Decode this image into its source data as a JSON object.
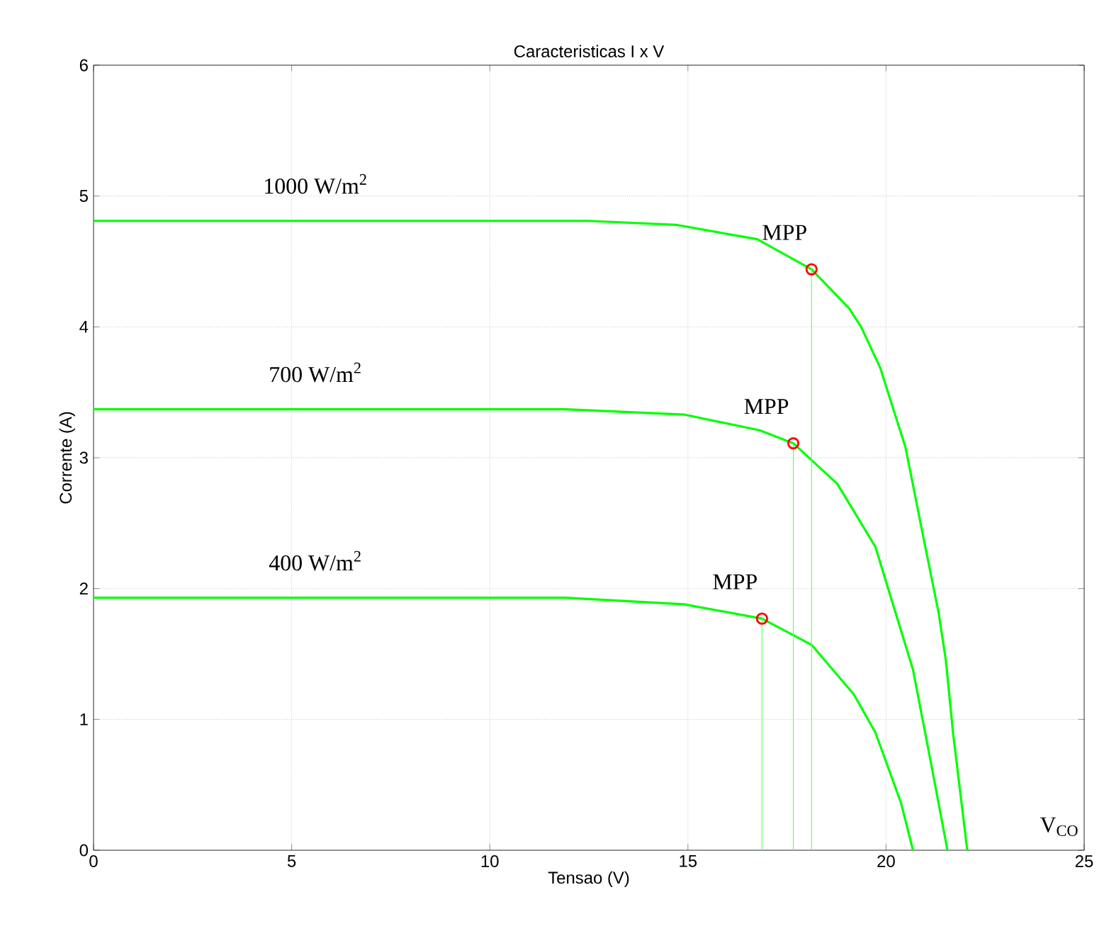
{
  "chart_data": {
    "type": "line",
    "title": "Caracteristicas I x V",
    "xlabel": "Tensao (V)",
    "ylabel": "Corrente (A)",
    "xlim": [
      0,
      25
    ],
    "ylim": [
      0,
      6
    ],
    "xticks": [
      0,
      5,
      10,
      15,
      20,
      25
    ],
    "yticks": [
      0,
      1,
      2,
      3,
      4,
      5,
      6
    ],
    "grid": true,
    "marker": "none",
    "series": [
      {
        "color": "#00ff00",
        "x": [
          0,
          5,
          10,
          12.5,
          14.7,
          16.75,
          18.12,
          19.07,
          19.37,
          19.85,
          20.49,
          20.97,
          21.33,
          21.51,
          21.69,
          22.05
        ],
        "values": [
          4.81,
          4.81,
          4.81,
          4.81,
          4.78,
          4.67,
          4.44,
          4.14,
          4.0,
          3.69,
          3.08,
          2.35,
          1.81,
          1.45,
          0.9,
          0
        ]
      },
      {
        "color": "#00ff00",
        "x": [
          0,
          5,
          10,
          11.9,
          14.9,
          16.81,
          17.66,
          18.77,
          19.73,
          20.68,
          21.1,
          21.55
        ],
        "values": [
          3.37,
          3.37,
          3.37,
          3.37,
          3.33,
          3.21,
          3.11,
          2.8,
          2.32,
          1.38,
          0.72,
          0
        ]
      },
      {
        "color": "#00ff00",
        "x": [
          0,
          5,
          10,
          11.9,
          14.9,
          16.87,
          18.12,
          19.19,
          19.73,
          20.38,
          20.68
        ],
        "values": [
          1.93,
          1.93,
          1.93,
          1.93,
          1.88,
          1.77,
          1.57,
          1.19,
          0.9,
          0.36,
          0
        ]
      },
      {
        "color": "#66ff66",
        "x": [
          18.12,
          18.12
        ],
        "values": [
          0,
          4.44
        ]
      },
      {
        "color": "#66ff66",
        "x": [
          17.66,
          17.66
        ],
        "values": [
          0,
          3.11
        ]
      },
      {
        "color": "#66ff66",
        "x": [
          16.87,
          16.87
        ],
        "values": [
          0,
          1.77
        ]
      },
      {
        "type": "scatter",
        "marker": "circle",
        "color": "#ff0000",
        "x": [
          18.12,
          17.66,
          16.87
        ],
        "values": [
          4.44,
          3.11,
          1.77
        ]
      }
    ],
    "annotations": [
      "1000 W/m$^{2}$",
      "700 W/m$^{2}$",
      "400 W/m$^{2}$",
      "MPP",
      "MPP",
      "MPP",
      "V$_{CO}$"
    ]
  }
}
